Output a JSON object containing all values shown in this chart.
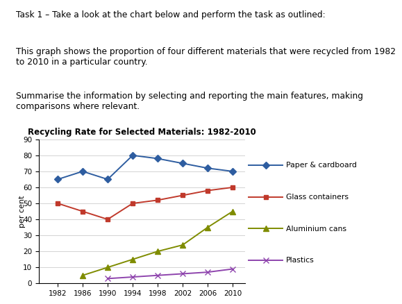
{
  "title": "Recycling Rate for Selected Materials: 1982-2010",
  "ylabel": "per cent",
  "years": [
    1982,
    1986,
    1990,
    1994,
    1998,
    2002,
    2006,
    2010
  ],
  "series": {
    "Paper & cardboard": {
      "values": [
        65,
        70,
        65,
        80,
        78,
        75,
        72,
        70
      ],
      "color": "#2E5DA0",
      "marker": "D",
      "markersize": 5
    },
    "Glass containers": {
      "values": [
        50,
        45,
        40,
        50,
        52,
        55,
        58,
        60
      ],
      "color": "#C0392B",
      "marker": "s",
      "markersize": 5
    },
    "Aluminium cans": {
      "values": [
        null,
        5,
        10,
        15,
        20,
        24,
        35,
        45
      ],
      "color": "#7F8C00",
      "marker": "^",
      "markersize": 6
    },
    "Plastics": {
      "values": [
        null,
        null,
        3,
        4,
        5,
        6,
        7,
        9
      ],
      "color": "#8E44AD",
      "marker": "x",
      "markersize": 6
    }
  },
  "ylim": [
    0,
    90
  ],
  "yticks": [
    0,
    10,
    20,
    30,
    40,
    50,
    60,
    70,
    80,
    90
  ],
  "text_line1": "Task 1 – Take a look at the chart below and perform the task as outlined:",
  "text_line2": "This graph shows the proportion of four different materials that were recycled from 1982\nto 2010 in a particular country.",
  "text_line3": "Summarise the information by selecting and reporting the main features, making\ncomparisons where relevant."
}
